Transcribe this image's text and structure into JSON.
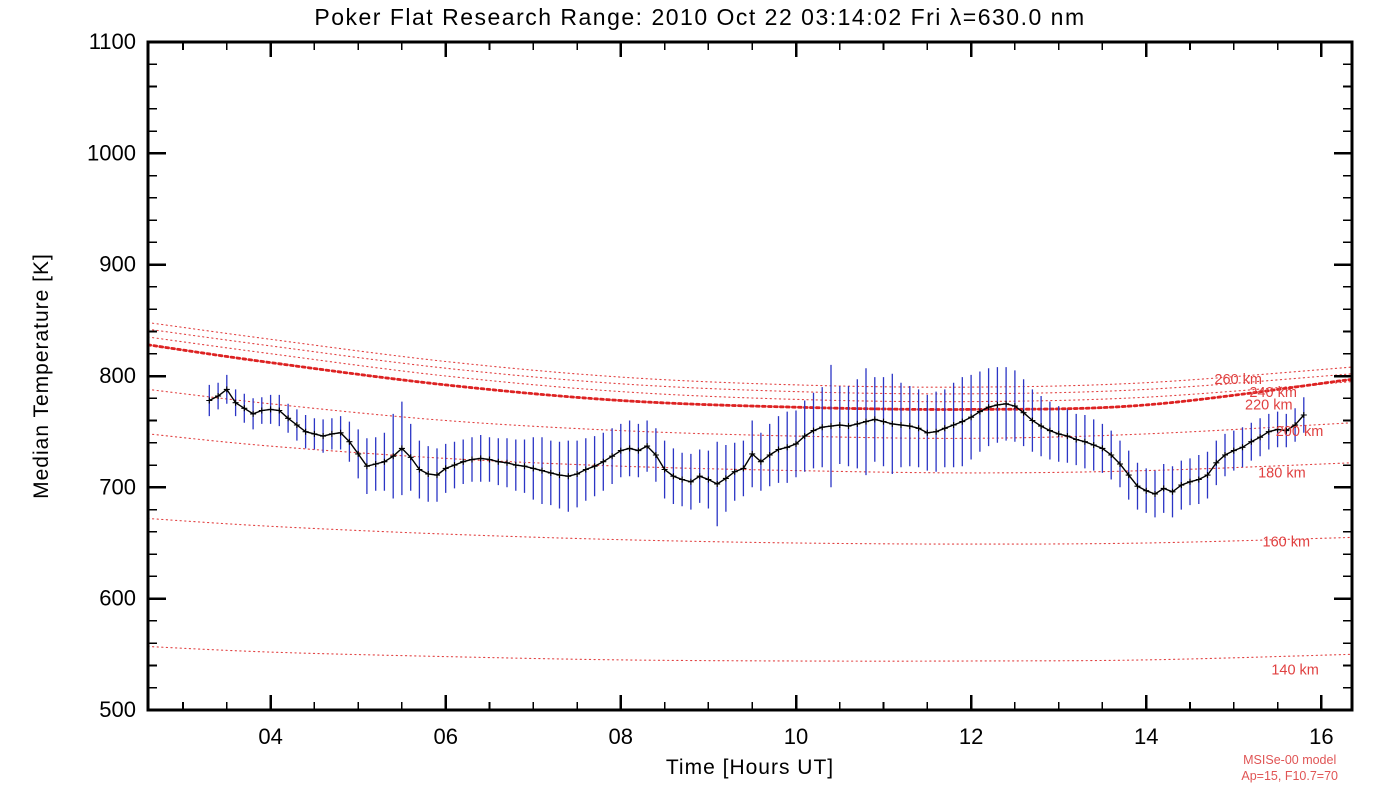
{
  "chart_data": {
    "type": "line",
    "title": "Poker Flat Research Range: 2010 Oct 22 03:14:02 Fri λ=630.0 nm",
    "xlabel": "Time [Hours UT]",
    "ylabel": "Median Temperature [K]",
    "xlim": [
      2.6,
      16.35
    ],
    "ylim": [
      500,
      1100
    ],
    "grid": false,
    "x_major_ticks": [
      4,
      6,
      8,
      10,
      12,
      14,
      16
    ],
    "x_tick_labels": [
      "04",
      "06",
      "08",
      "10",
      "12",
      "14",
      "16"
    ],
    "x_minor_step": 0.5,
    "y_major_ticks": [
      500,
      600,
      700,
      800,
      900,
      1000,
      1100
    ],
    "y_minor_step": 20,
    "colors": {
      "measurement": "#000000",
      "error_bar": "#2b35c5",
      "model": "#dd2222",
      "model_label": "#e04040",
      "annotation": "#e05555"
    },
    "measurements": {
      "x": [
        3.3,
        3.4,
        3.5,
        3.6,
        3.7,
        3.8,
        3.9,
        4.0,
        4.1,
        4.2,
        4.3,
        4.4,
        4.5,
        4.6,
        4.7,
        4.8,
        4.9,
        5.0,
        5.1,
        5.2,
        5.3,
        5.4,
        5.5,
        5.6,
        5.7,
        5.8,
        5.9,
        6.0,
        6.1,
        6.2,
        6.3,
        6.4,
        6.5,
        6.6,
        6.7,
        6.8,
        6.9,
        7.0,
        7.1,
        7.2,
        7.3,
        7.4,
        7.5,
        7.6,
        7.7,
        7.8,
        7.9,
        8.0,
        8.1,
        8.2,
        8.3,
        8.4,
        8.5,
        8.6,
        8.7,
        8.8,
        8.9,
        9.0,
        9.1,
        9.2,
        9.3,
        9.4,
        9.5,
        9.6,
        9.7,
        9.8,
        9.9,
        10.0,
        10.1,
        10.2,
        10.3,
        10.4,
        10.5,
        10.6,
        10.7,
        10.8,
        10.9,
        11.0,
        11.1,
        11.2,
        11.3,
        11.4,
        11.5,
        11.6,
        11.7,
        11.8,
        11.9,
        12.0,
        12.1,
        12.2,
        12.3,
        12.4,
        12.5,
        12.6,
        12.7,
        12.8,
        12.9,
        13.0,
        13.1,
        13.2,
        13.3,
        13.4,
        13.5,
        13.6,
        13.7,
        13.8,
        13.9,
        14.0,
        14.1,
        14.2,
        14.3,
        14.4,
        14.5,
        14.6,
        14.7,
        14.8,
        14.9,
        15.0,
        15.1,
        15.2,
        15.3,
        15.4,
        15.5,
        15.6,
        15.7,
        15.8
      ],
      "y": [
        778,
        782,
        788,
        776,
        771,
        766,
        769,
        770,
        769,
        762,
        756,
        750,
        748,
        746,
        748,
        749,
        741,
        730,
        719,
        721,
        723,
        728,
        735,
        727,
        716,
        712,
        711,
        717,
        720,
        723,
        725,
        726,
        725,
        723,
        722,
        720,
        719,
        717,
        715,
        713,
        711,
        710,
        712,
        716,
        719,
        723,
        728,
        733,
        735,
        733,
        737,
        729,
        716,
        710,
        707,
        705,
        710,
        707,
        703,
        708,
        714,
        717,
        730,
        723,
        729,
        734,
        736,
        739,
        746,
        751,
        754,
        755,
        756,
        755,
        757,
        759,
        761,
        759,
        757,
        756,
        755,
        753,
        749,
        750,
        753,
        756,
        759,
        763,
        768,
        772,
        774,
        775,
        773,
        767,
        760,
        755,
        751,
        748,
        746,
        743,
        741,
        738,
        735,
        729,
        721,
        711,
        701,
        697,
        694,
        699,
        696,
        702,
        705,
        707,
        711,
        722,
        729,
        733,
        736,
        741,
        745,
        750,
        752,
        751,
        756,
        765
      ],
      "yerr": [
        14,
        12,
        13,
        12,
        13,
        14,
        12,
        13,
        14,
        13,
        14,
        15,
        14,
        15,
        14,
        15,
        18,
        22,
        25,
        24,
        26,
        38,
        42,
        30,
        26,
        25,
        24,
        22,
        21,
        20,
        20,
        21,
        20,
        21,
        22,
        23,
        24,
        28,
        30,
        29,
        30,
        32,
        30,
        28,
        27,
        26,
        25,
        24,
        25,
        24,
        23,
        24,
        26,
        25,
        24,
        25,
        24,
        26,
        38,
        30,
        26,
        25,
        30,
        26,
        28,
        30,
        32,
        30,
        32,
        34,
        36,
        55,
        35,
        36,
        40,
        48,
        38,
        40,
        45,
        38,
        36,
        35,
        34,
        36,
        35,
        38,
        40,
        38,
        36,
        35,
        34,
        33,
        32,
        30,
        28,
        27,
        26,
        25,
        24,
        23,
        24,
        23,
        22,
        22,
        21,
        22,
        21,
        20,
        21,
        22,
        23,
        22,
        21,
        22,
        21,
        20,
        19,
        18,
        18,
        17,
        17,
        16,
        16,
        15,
        15,
        16
      ]
    },
    "model_curves": [
      {
        "label": "260 km",
        "bold": false,
        "label_x": 15.05,
        "label_y": 793,
        "x": [
          2.6,
          4,
          6,
          8,
          10,
          12,
          14,
          16.35
        ],
        "y": [
          848,
          833,
          813,
          799,
          792,
          790,
          794,
          808
        ]
      },
      {
        "label": "240 km",
        "bold": false,
        "label_x": 15.45,
        "label_y": 781,
        "x": [
          2.6,
          4,
          6,
          8,
          10,
          12,
          14,
          16.35
        ],
        "y": [
          842,
          827,
          807,
          793,
          786,
          784,
          788,
          802
        ]
      },
      {
        "label": "220 km",
        "bold": false,
        "label_x": 15.4,
        "label_y": 770,
        "x": [
          2.6,
          4,
          6,
          8,
          10,
          12,
          14,
          16.35
        ],
        "y": [
          835,
          820,
          800,
          786,
          779,
          777,
          781,
          795
        ]
      },
      {
        "label": "",
        "bold": true,
        "label_x": null,
        "label_y": null,
        "x": [
          2.6,
          4,
          6,
          8,
          10,
          12,
          14,
          16.35
        ],
        "y": [
          828,
          812,
          792,
          778,
          772,
          770,
          774,
          797
        ]
      },
      {
        "label": "200 km",
        "bold": false,
        "label_x": 15.75,
        "label_y": 746,
        "x": [
          2.6,
          4,
          6,
          8,
          10,
          12,
          14,
          16.35
        ],
        "y": [
          788,
          775,
          760,
          751,
          746,
          744,
          748,
          758
        ]
      },
      {
        "label": "180 km",
        "bold": false,
        "label_x": 15.55,
        "label_y": 709,
        "x": [
          2.6,
          4,
          6,
          8,
          10,
          12,
          14,
          16.35
        ],
        "y": [
          748,
          737,
          726,
          719,
          715,
          713,
          715,
          722
        ]
      },
      {
        "label": "160 km",
        "bold": false,
        "label_x": 15.6,
        "label_y": 647,
        "x": [
          2.6,
          4,
          6,
          8,
          10,
          12,
          14,
          16.35
        ],
        "y": [
          672,
          665,
          658,
          653,
          650,
          649,
          650,
          655
        ]
      },
      {
        "label": "140 km",
        "bold": false,
        "label_x": 15.7,
        "label_y": 532,
        "x": [
          2.6,
          4,
          6,
          8,
          10,
          12,
          14,
          16.35
        ],
        "y": [
          557,
          552,
          548,
          545,
          544,
          544,
          545,
          550
        ]
      }
    ],
    "annotations": {
      "model_name": "MSISe-00 model",
      "model_params": "Ap=15, F10.7=70"
    }
  }
}
